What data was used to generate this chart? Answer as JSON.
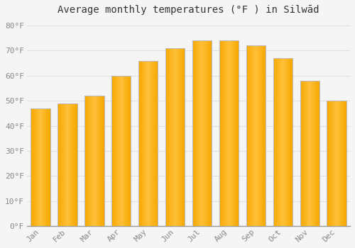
{
  "title": "Average monthly temperatures (°F ) in Silwād",
  "months": [
    "Jan",
    "Feb",
    "Mar",
    "Apr",
    "May",
    "Jun",
    "Jul",
    "Aug",
    "Sep",
    "Oct",
    "Nov",
    "Dec"
  ],
  "values": [
    47,
    49,
    52,
    60,
    66,
    71,
    74,
    74,
    72,
    67,
    58,
    50
  ],
  "bar_color_center": "#FFC03A",
  "bar_color_edge": "#F5A800",
  "bar_outline_color": "#BBBBBB",
  "ylim": [
    0,
    82
  ],
  "yticks": [
    0,
    10,
    20,
    30,
    40,
    50,
    60,
    70,
    80
  ],
  "ylabel_suffix": "°F",
  "background_color": "#f5f5f5",
  "plot_bg_color": "#f5f5f5",
  "grid_color": "#e0e0e0",
  "title_fontsize": 10,
  "tick_fontsize": 8,
  "tick_color": "#888888",
  "title_color": "#333333"
}
